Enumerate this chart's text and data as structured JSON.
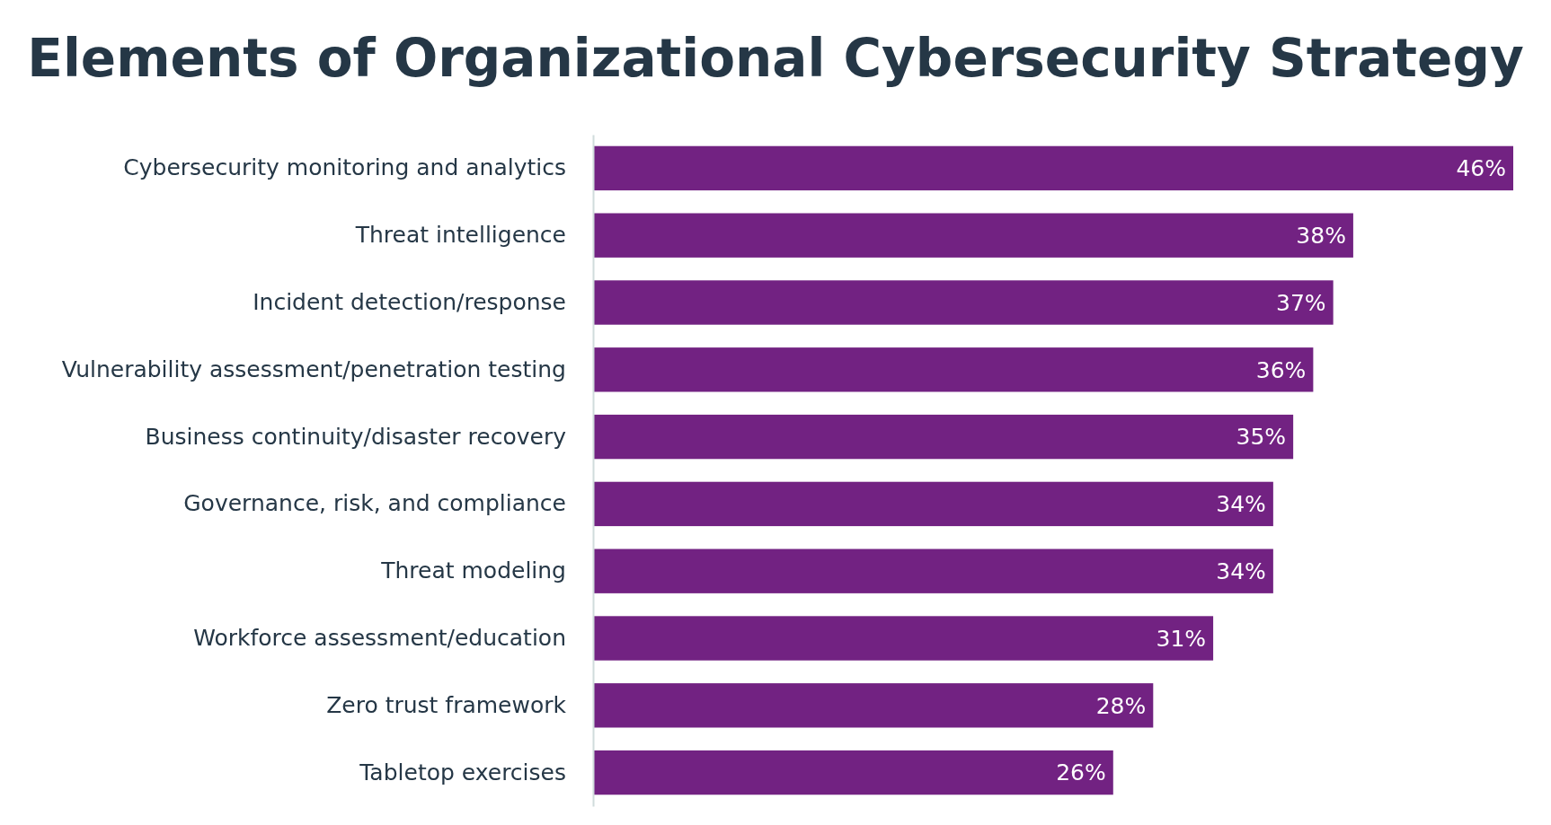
{
  "chart_data": {
    "type": "bar",
    "orientation": "horizontal",
    "title": "Elements of Organizational Cybersecurity Strategy",
    "categories": [
      "Cybersecurity monitoring and analytics",
      "Threat intelligence",
      "Incident detection/response",
      "Vulnerability assessment/penetration testing",
      "Business continuity/disaster recovery",
      "Governance, risk, and compliance",
      "Threat modeling",
      "Workforce assessment/education",
      "Zero trust framework",
      "Tabletop exercises"
    ],
    "values": [
      46,
      38,
      37,
      36,
      35,
      34,
      34,
      31,
      28,
      26
    ],
    "value_labels": [
      "46%",
      "38%",
      "37%",
      "36%",
      "35%",
      "34%",
      "34%",
      "31%",
      "28%",
      "26%"
    ],
    "color": "#722282",
    "xlim": [
      0,
      46
    ]
  }
}
